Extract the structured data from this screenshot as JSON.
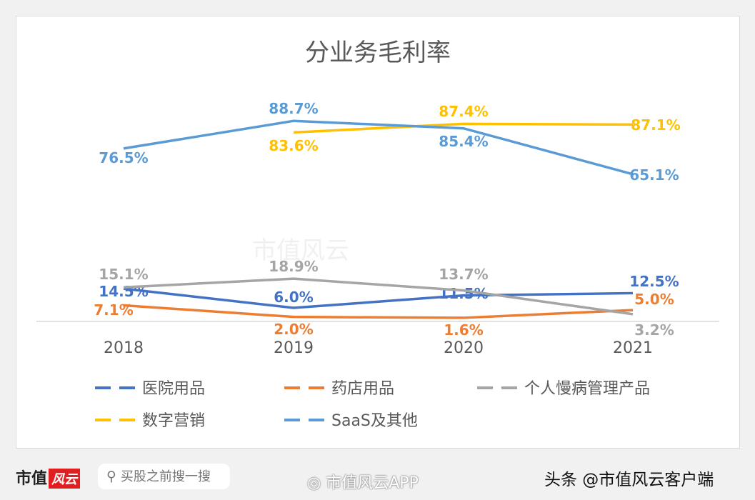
{
  "watermark": "市值风云",
  "chart_data": {
    "type": "line",
    "title": "分业务毛利率",
    "categories": [
      "2018",
      "2019",
      "2020",
      "2021"
    ],
    "ylim": [
      0,
      100
    ],
    "grid": false,
    "legend_position": "bottom",
    "series": [
      {
        "name": "医院用品",
        "color": "#4472c4",
        "values": [
          14.5,
          6.0,
          11.5,
          12.5
        ],
        "labels": [
          "14.5%",
          "6.0%",
          "11.5%",
          "12.5%"
        ]
      },
      {
        "name": "药店用品",
        "color": "#ed7d31",
        "values": [
          7.1,
          2.0,
          1.6,
          5.0
        ],
        "labels": [
          "7.1%",
          "2.0%",
          "1.6%",
          "5.0%"
        ]
      },
      {
        "name": "个人慢病管理产品",
        "color": "#a5a5a5",
        "values": [
          15.1,
          18.9,
          13.7,
          3.2
        ],
        "labels": [
          "15.1%",
          "18.9%",
          "13.7%",
          "3.2%"
        ]
      },
      {
        "name": "数字营销",
        "color": "#ffc000",
        "values": [
          null,
          83.6,
          87.4,
          87.1
        ],
        "labels": [
          null,
          "83.6%",
          "87.4%",
          "87.1%"
        ]
      },
      {
        "name": "SaaS及其他",
        "color": "#5b9bd5",
        "values": [
          76.5,
          88.7,
          85.4,
          65.1
        ],
        "labels": [
          "76.5%",
          "88.7%",
          "85.4%",
          "65.1%"
        ]
      }
    ]
  },
  "footer": {
    "logo_text": "市值",
    "logo_badge": "风云",
    "search_placeholder": "买股之前搜一搜",
    "weibo_text": "市值风云APP",
    "toutiao_text": "头条 @市值风云客户端"
  }
}
